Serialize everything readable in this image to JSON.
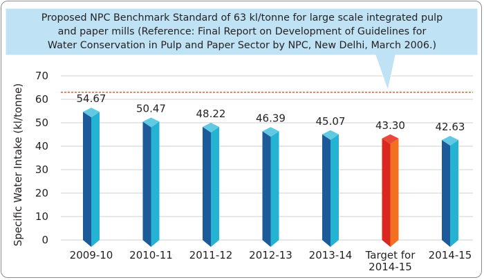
{
  "chart_data": {
    "type": "bar",
    "callout": "Proposed NPC Benchmark Standard of 63 kl/tonne for large scale integrated pulp and paper mills (Reference: Final Report on Development of Guidelines for Water Conservation in Pulp and Paper Sector by NPC, New Delhi, March 2006.)",
    "callout_lines": [
      "Proposed NPC Benchmark Standard of 63 kl/tonne for large scale integrated pulp",
      "and paper mills (Reference: Final Report on Development of Guidelines for",
      "Water Conservation in Pulp and Paper Sector by NPC, New Delhi, March 2006.)"
    ],
    "ylabel": "Specific Water Intake (kl/tonne)",
    "xlabel": "",
    "ylim": [
      0,
      70
    ],
    "yticks": [
      0,
      10,
      20,
      30,
      40,
      50,
      60,
      70
    ],
    "grid": true,
    "benchmark": 63,
    "categories": [
      "2009-10",
      "2010-11",
      "2011-12",
      "2012-13",
      "2013-14",
      "Target for 2014-15",
      "2014-15"
    ],
    "category_lines": [
      [
        "2009-10"
      ],
      [
        "2010-11"
      ],
      [
        "2011-12"
      ],
      [
        "2012-13"
      ],
      [
        "2013-14"
      ],
      [
        "Target for",
        "2014-15"
      ],
      [
        "2014-15"
      ]
    ],
    "values": [
      54.67,
      50.47,
      48.22,
      46.39,
      45.07,
      43.3,
      42.63
    ],
    "value_labels": [
      "54.67",
      "50.47",
      "48.22",
      "46.39",
      "45.07",
      "43.30",
      "42.63"
    ],
    "highlight_index": 5,
    "colors": {
      "bar_front": "#1d5a9a",
      "bar_side": "#24b3d3",
      "bar_top": "#62c9e3",
      "target_front": "#d8281f",
      "target_side": "#f37021",
      "target_top": "#e8493a",
      "grid": "#cfcfcf",
      "benchmark_line": "#e8452c",
      "callout_fill": "#bfe3f5",
      "text": "#231f20"
    }
  }
}
